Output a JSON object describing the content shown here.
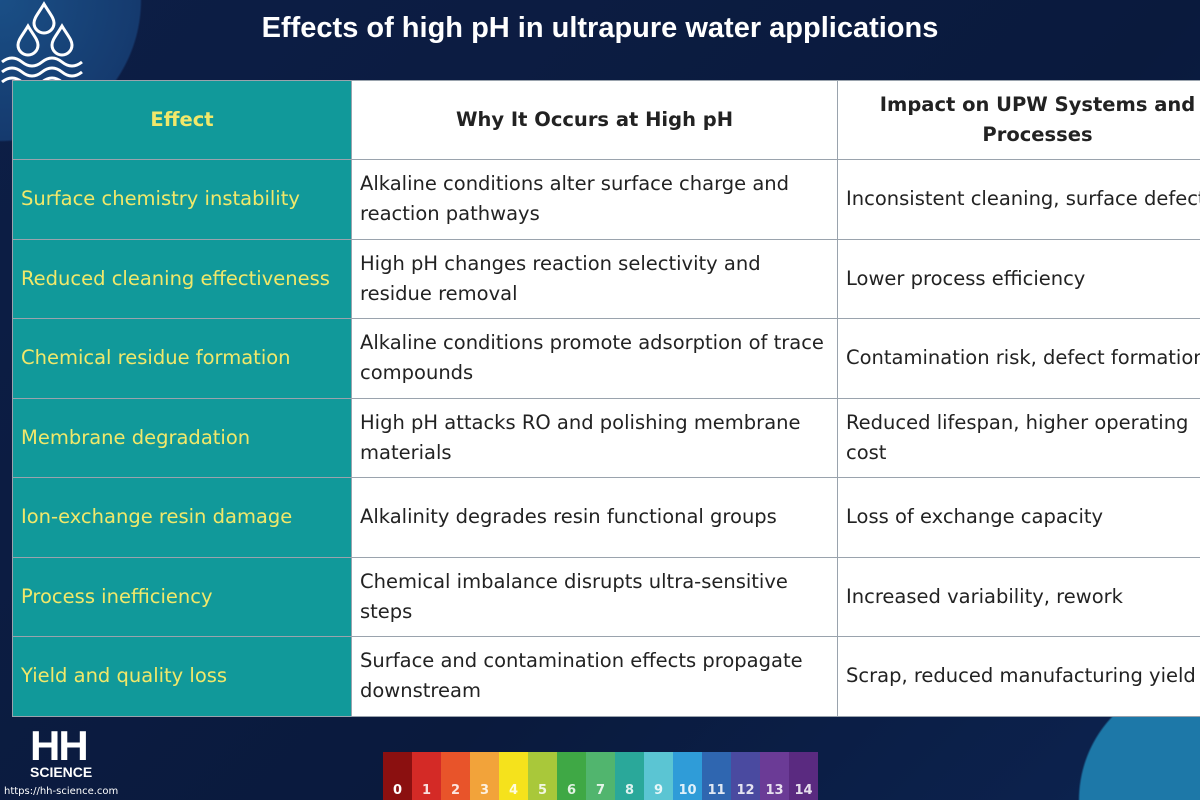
{
  "title": "Effects of high pH in ultrapure water applications",
  "table": {
    "header": [
      "Effect",
      "Why It Occurs at High pH",
      "Impact on UPW Systems and Processes"
    ],
    "rows": [
      [
        "Surface chemistry instability",
        "Alkaline conditions alter surface charge and reaction pathways",
        "Inconsistent cleaning, surface defects"
      ],
      [
        "Reduced cleaning effectiveness",
        "High pH changes reaction selectivity and residue removal",
        "Lower process efficiency"
      ],
      [
        "Chemical residue formation",
        "Alkaline conditions promote adsorption of trace compounds",
        "Contamination risk, defect formation"
      ],
      [
        "Membrane degradation",
        "High pH attacks RO and polishing membrane materials",
        "Reduced lifespan, higher operating cost"
      ],
      [
        "Ion-exchange resin damage",
        "Alkalinity degrades resin functional groups",
        "Loss of exchange capacity"
      ],
      [
        "Process inefficiency",
        "Chemical imbalance disrupts ultra-sensitive steps",
        "Increased variability, rework"
      ],
      [
        "Yield and quality loss",
        "Surface and contamination effects propagate downstream",
        "Scrap, reduced manufacturing yield"
      ]
    ]
  },
  "logo": {
    "line1": "HH",
    "line2": "SCIENCE",
    "url": "https://hh-science.com"
  },
  "ph_scale": [
    0,
    1,
    2,
    3,
    4,
    5,
    6,
    7,
    8,
    9,
    10,
    11,
    12,
    13,
    14
  ]
}
